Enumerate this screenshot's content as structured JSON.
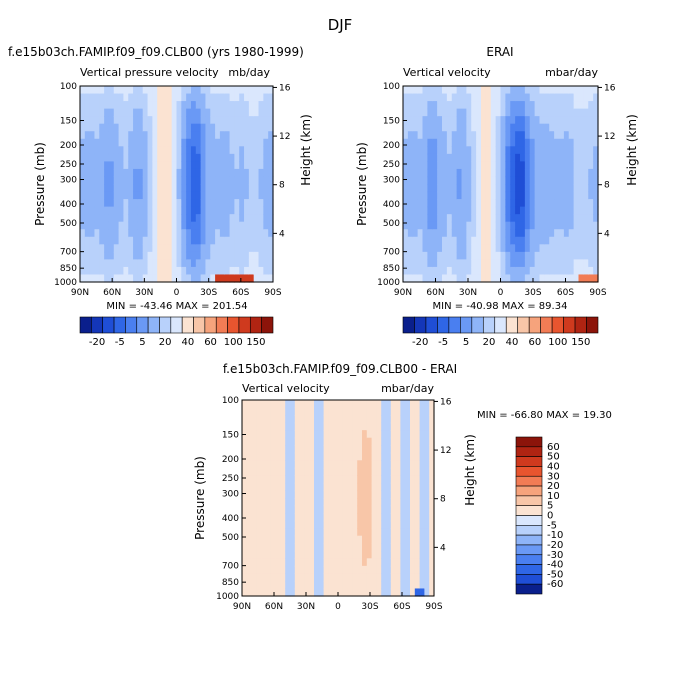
{
  "figure_title": "DJF",
  "colors": {
    "neg": [
      "#0a1f8c",
      "#1436b8",
      "#1f4ed6",
      "#2f66e6",
      "#4a7ff0",
      "#6a99f5",
      "#8eb4f8",
      "#b8d1fb",
      "#dae7fd"
    ],
    "pos": [
      "#fbe3d2",
      "#f8c6a8",
      "#f6a37c",
      "#f27c55",
      "#e8552f",
      "#cf3a1e",
      "#b02412",
      "#8c140a"
    ]
  },
  "chart_data": [
    {
      "id": "model",
      "type": "heatmap",
      "title": "f.e15b03ch.FAMIP.f09_f09.CLB00 (yrs 1980-1999)",
      "left_label": "Vertical pressure velocity",
      "right_label": "mb/day",
      "xlabel": "",
      "ylabel": "Pressure (mb)",
      "y2label": "Height (km)",
      "x_ticks": [
        "90N",
        "60N",
        "30N",
        "0",
        "30S",
        "60S",
        "90S"
      ],
      "y_ticks": [
        "100",
        "150",
        "200",
        "250",
        "300",
        "400",
        "500",
        "700",
        "850",
        "1000"
      ],
      "y2_ticks": [
        "4",
        "8",
        "12",
        "16"
      ],
      "min_max_text": "MIN = -43.46   MAX = 201.54",
      "colorbar_labels": [
        "-20",
        "-5",
        "5",
        "20",
        "40",
        "60",
        "100",
        "150"
      ],
      "lat_profile": [
        -5,
        -6,
        -5,
        -10,
        -5,
        -4,
        -10,
        -4,
        0,
        2,
        -1,
        -14,
        -22,
        -9,
        -5,
        -6,
        -4,
        -5,
        -2,
        -5,
        -6
      ],
      "surface_extreme": {
        "lat_range": [
          -35,
          -70
        ],
        "value": 201.54
      }
    },
    {
      "id": "obs",
      "type": "heatmap",
      "title": "ERAI",
      "left_label": "Vertical velocity",
      "right_label": "mbar/day",
      "xlabel": "",
      "ylabel": "Pressure (mb)",
      "y2label": "Height (km)",
      "x_ticks": [
        "90N",
        "60N",
        "30N",
        "0",
        "30S",
        "60S",
        "90S"
      ],
      "y_ticks": [
        "100",
        "150",
        "200",
        "250",
        "300",
        "400",
        "500",
        "700",
        "850",
        "1000"
      ],
      "y2_ticks": [
        "4",
        "8",
        "12",
        "16"
      ],
      "min_max_text": "MIN = -40.98   MAX = 89.34",
      "colorbar_labels": [
        "-20",
        "-5",
        "5",
        "20",
        "40",
        "60",
        "100",
        "150"
      ],
      "lat_profile": [
        -5,
        -6,
        -5,
        -12,
        -6,
        -4,
        -10,
        -3,
        0,
        1,
        -4,
        -18,
        -25,
        -12,
        -6,
        -6,
        -5,
        -6,
        -3,
        -4,
        -5
      ],
      "surface_extreme": {
        "lat_range": [
          -70,
          -90
        ],
        "value": 89.34
      }
    },
    {
      "id": "diff",
      "type": "heatmap",
      "title": "f.e15b03ch.FAMIP.f09_f09.CLB00 - ERAI",
      "left_label": "Vertical velocity",
      "right_label": "mbar/day",
      "xlabel": "",
      "ylabel": "Pressure (mb)",
      "y2label": "Height (km)",
      "x_ticks": [
        "90N",
        "60N",
        "30N",
        "0",
        "30S",
        "60S",
        "90S"
      ],
      "y_ticks": [
        "100",
        "150",
        "200",
        "250",
        "300",
        "400",
        "500",
        "700",
        "850",
        "1000"
      ],
      "y2_ticks": [
        "4",
        "8",
        "12",
        "16"
      ],
      "min_max_text": "MIN = -66.80   MAX =  19.30",
      "colorbar_labels": [
        "60",
        "50",
        "40",
        "30",
        "20",
        "10",
        "5",
        "0",
        "-5",
        "-10",
        "-20",
        "-30",
        "-40",
        "-50",
        "-60"
      ],
      "lat_profile": [
        2,
        1,
        2,
        3,
        1,
        -1,
        2,
        1,
        -2,
        1,
        3,
        -1,
        4,
        8,
        2,
        -1,
        1,
        -2,
        1,
        -1,
        1
      ],
      "surface_extreme": {
        "lat_range": [
          -70,
          -80
        ],
        "value": -66.8
      }
    }
  ]
}
